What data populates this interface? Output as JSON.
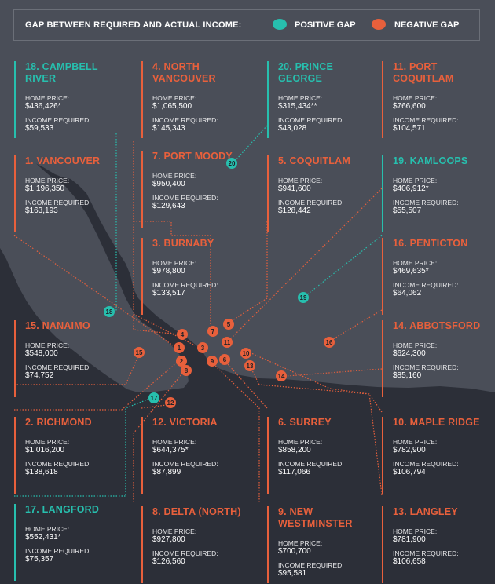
{
  "legend": {
    "title": "GAP BETWEEN REQUIRED AND ACTUAL INCOME:",
    "positive_label": "POSITIVE GAP",
    "negative_label": "NEGATIVE GAP"
  },
  "colors": {
    "background": "#2c2f38",
    "land": "#4a4e58",
    "positive": "#27bfae",
    "negative": "#e8603c"
  },
  "cities": [
    {
      "num": "18",
      "name": "18. CAMPBELL RIVER",
      "gap": "positive",
      "home_price_label": "HOME PRICE:",
      "home_price": "$436,426*",
      "income_label": "INCOME REQUIRED:",
      "income_required": "$59,533"
    },
    {
      "num": "4",
      "name": "4. NORTH VANCOUVER",
      "gap": "negative",
      "home_price_label": "HOME PRICE:",
      "home_price": "$1,065,500",
      "income_label": "INCOME REQUIRED:",
      "income_required": "$145,343"
    },
    {
      "num": "20",
      "name": "20. PRINCE GEORGE",
      "gap": "positive",
      "home_price_label": "HOME PRICE:",
      "home_price": "$315,434**",
      "income_label": "INCOME REQUIRED:",
      "income_required": "$43,028"
    },
    {
      "num": "11",
      "name": "11. PORT COQUITLAM",
      "gap": "negative",
      "home_price_label": "HOME PRICE:",
      "home_price": "$766,600",
      "income_label": "INCOME REQUIRED:",
      "income_required": "$104,571"
    },
    {
      "num": "1",
      "name": "1. VANCOUVER",
      "gap": "negative",
      "home_price_label": "HOME PRICE:",
      "home_price": "$1,196,350",
      "income_label": "INCOME REQUIRED:",
      "income_required": "$163,193"
    },
    {
      "num": "7",
      "name": "7. PORT MOODY",
      "gap": "negative",
      "home_price_label": "HOME PRICE:",
      "home_price": "$950,400",
      "income_label": "INCOME REQUIRED:",
      "income_required": "$129,643"
    },
    {
      "num": "5",
      "name": "5. COQUITLAM",
      "gap": "negative",
      "home_price_label": "HOME PRICE:",
      "home_price": "$941,600",
      "income_label": "INCOME REQUIRED:",
      "income_required": "$128,442"
    },
    {
      "num": "19",
      "name": "19. KAMLOOPS",
      "gap": "positive",
      "home_price_label": "HOME PRICE:",
      "home_price": "$406,912*",
      "income_label": "INCOME REQUIRED:",
      "income_required": "$55,507"
    },
    {
      "num": "3",
      "name": "3. BURNABY",
      "gap": "negative",
      "home_price_label": "HOME PRICE:",
      "home_price": "$978,800",
      "income_label": "INCOME REQUIRED:",
      "income_required": "$133,517"
    },
    {
      "num": "16",
      "name": "16. PENTICTON",
      "gap": "negative",
      "home_price_label": "HOME PRICE:",
      "home_price": "$469,635*",
      "income_label": "INCOME REQUIRED:",
      "income_required": "$64,062"
    },
    {
      "num": "15",
      "name": "15. NANAIMO",
      "gap": "negative",
      "home_price_label": "HOME PRICE:",
      "home_price": "$548,000",
      "income_label": "INCOME REQUIRED:",
      "income_required": "$74,752"
    },
    {
      "num": "14",
      "name": "14. ABBOTSFORD",
      "gap": "negative",
      "home_price_label": "HOME PRICE:",
      "home_price": "$624,300",
      "income_label": "INCOME REQUIRED:",
      "income_required": "$85,160"
    },
    {
      "num": "2",
      "name": "2. RICHMOND",
      "gap": "negative",
      "home_price_label": "HOME PRICE:",
      "home_price": "$1,016,200",
      "income_label": "INCOME REQUIRED:",
      "income_required": "$138,618"
    },
    {
      "num": "12",
      "name": "12. VICTORIA",
      "gap": "negative",
      "home_price_label": "HOME PRICE:",
      "home_price": "$644,375*",
      "income_label": "INCOME REQUIRED:",
      "income_required": "$87,899"
    },
    {
      "num": "6",
      "name": "6. SURREY",
      "gap": "negative",
      "home_price_label": "HOME PRICE:",
      "home_price": "$858,200",
      "income_label": "INCOME REQUIRED:",
      "income_required": "$117,066"
    },
    {
      "num": "10",
      "name": "10. MAPLE RIDGE",
      "gap": "negative",
      "home_price_label": "HOME PRICE:",
      "home_price": "$782,900",
      "income_label": "INCOME REQUIRED:",
      "income_required": "$106,794"
    },
    {
      "num": "17",
      "name": "17. LANGFORD",
      "gap": "positive",
      "home_price_label": "HOME PRICE:",
      "home_price": "$552,431*",
      "income_label": "INCOME REQUIRED:",
      "income_required": "$75,357"
    },
    {
      "num": "8",
      "name": "8. DELTA (NORTH)",
      "gap": "negative",
      "home_price_label": "HOME PRICE:",
      "home_price": "$927,800",
      "income_label": "INCOME REQUIRED:",
      "income_required": "$126,560"
    },
    {
      "num": "9",
      "name": "9. NEW WESTMINSTER",
      "gap": "negative",
      "home_price_label": "HOME PRICE:",
      "home_price": "$700,700",
      "income_label": "INCOME REQUIRED:",
      "income_required": "$95,581"
    },
    {
      "num": "13",
      "name": "13. LANGLEY",
      "gap": "negative",
      "home_price_label": "HOME PRICE:",
      "home_price": "$781,900",
      "income_label": "INCOME REQUIRED:",
      "income_required": "$106,658"
    }
  ]
}
